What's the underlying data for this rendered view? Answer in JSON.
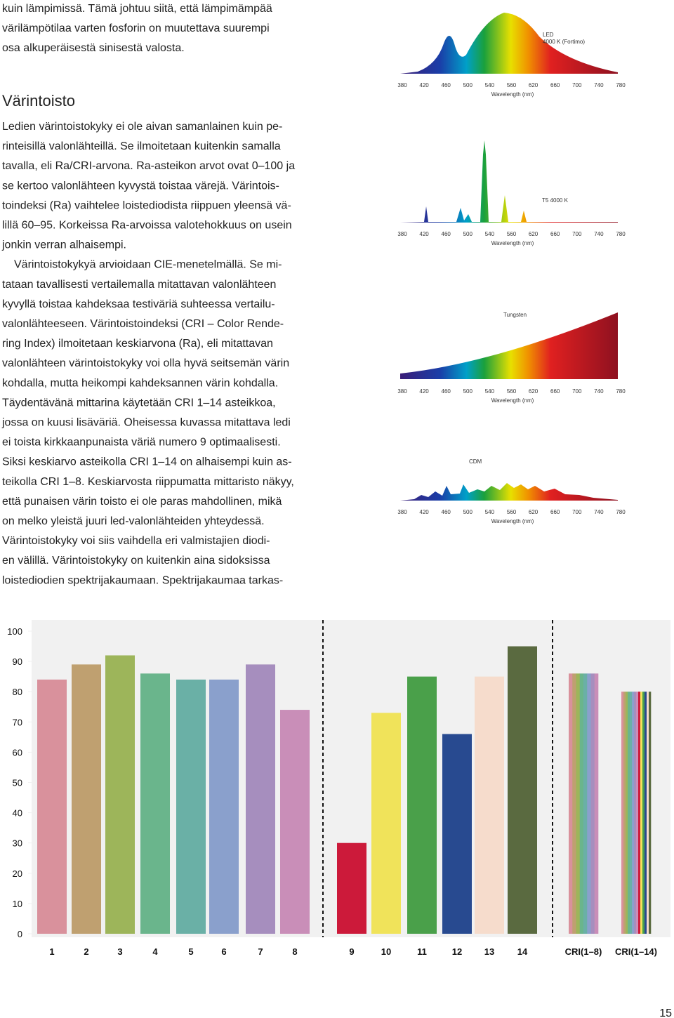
{
  "text_column": {
    "intro_lines": [
      "kuin lämpimissä. Tämä johtuu siitä, että lämpimämpää",
      "värilämpötilaa varten fosforin on muutettava suurempi",
      "osa alkuperäisestä sinisestä valosta."
    ],
    "heading": "Värintoisto",
    "paragraph_lines": [
      "Ledien värintoistokyky ei ole aivan samanlainen kuin pe-",
      "rinteisillä valonlähteillä. Se ilmoitetaan kuitenkin samalla",
      "tavalla, eli Ra/CRI-arvona. Ra-asteikon arvot ovat 0–100 ja",
      "se kertoo valonlähteen kyvystä toistaa värejä. Värintois-",
      "toindeksi (Ra) vaihtelee loistediodista riippuen yleensä vä-",
      "lillä 60–95. Korkeissa Ra-arvoissa valotehokkuus on usein",
      "jonkin verran alhaisempi.",
      "Värintoistokykyä arvioidaan CIE-menetelmällä. Se mi-",
      "tataan tavallisesti vertailemalla mitattavan valonlähteen",
      "kyvyllä toistaa kahdeksaa testiväriä suhteessa vertailu-",
      "valonlähteeseen. Värintoistoindeksi (CRI – Color Rende-",
      "ring Index) ilmoitetaan keskiarvona (Ra), eli mitattavan",
      "valonlähteen värintoistokyky voi olla hyvä seitsemän värin",
      "kohdalla, mutta heikompi kahdeksannen värin kohdalla.",
      "Täydentävänä mittarina käytetään CRI 1–14 asteikkoa,",
      "jossa on kuusi lisäväriä. Oheisessa kuvassa mitattava ledi",
      "ei toista kirkkaanpunaista väriä numero 9 optimaalisesti.",
      "Siksi keskiarvo asteikolla CRI 1–14 on alhaisempi kuin as-",
      "teikolla CRI 1–8. Keskiarvosta riippumatta mittaristo näkyy,",
      "että punaisen värin toisto ei ole paras mahdollinen, mikä",
      "on melko yleistä juuri led-valonlähteiden yhteydessä.",
      "Värintoistokyky voi siis vaihdella eri valmistajien diodi-",
      "en välillä. Värintoistokyky on kuitenkin aina sidoksissa",
      "loistediodien spektrijakaumaan.  Spektrijakaumaa tarkas-"
    ]
  },
  "spectra": [
    {
      "labels": [
        "LED",
        "4000 K (Fortimo)"
      ],
      "xtick_labels": [
        "380",
        "420",
        "460",
        "500",
        "540",
        "560",
        "620",
        "660",
        "700",
        "740",
        "780"
      ],
      "xlabel": "Wavelength (nm)"
    },
    {
      "labels": [
        "T5 4000 K"
      ],
      "xtick_labels": [
        "380",
        "420",
        "460",
        "500",
        "540",
        "560",
        "620",
        "660",
        "700",
        "740",
        "780"
      ],
      "xlabel": "Wavelength (nm)"
    },
    {
      "labels": [
        "Tungsten"
      ],
      "xtick_labels": [
        "380",
        "420",
        "460",
        "500",
        "540",
        "560",
        "620",
        "660",
        "700",
        "740",
        "780"
      ],
      "xlabel": "Wavelength (nm)"
    },
    {
      "labels": [
        "CDM"
      ],
      "xtick_labels": [
        "380",
        "420",
        "460",
        "500",
        "540",
        "560",
        "620",
        "660",
        "700",
        "740",
        "780"
      ],
      "xlabel": "Wavelength (nm)"
    }
  ],
  "chart_data": {
    "type": "bar",
    "categories": [
      "1",
      "2",
      "3",
      "4",
      "5",
      "6",
      "7",
      "8",
      "9",
      "10",
      "11",
      "12",
      "13",
      "14",
      "CRI(1–8)",
      "CRI(1–14)"
    ],
    "values": [
      84,
      89,
      92,
      86,
      84,
      84,
      89,
      74,
      30,
      73,
      85,
      66,
      85,
      95,
      86,
      80
    ],
    "colors": [
      "#d9919c",
      "#bfa070",
      "#9db55a",
      "#6ab58c",
      "#6ab0a6",
      "#8aa0cc",
      "#a68ebe",
      "#c98eb8",
      "#cc1a3a",
      "#f0e35a",
      "#4aa04a",
      "#284a90",
      "#f6dccc",
      "#5a6a40"
    ],
    "ylim": [
      0,
      100
    ],
    "yticks": [
      0,
      10,
      20,
      30,
      40,
      50,
      60,
      70,
      80,
      90,
      100
    ]
  },
  "page_number": "15"
}
